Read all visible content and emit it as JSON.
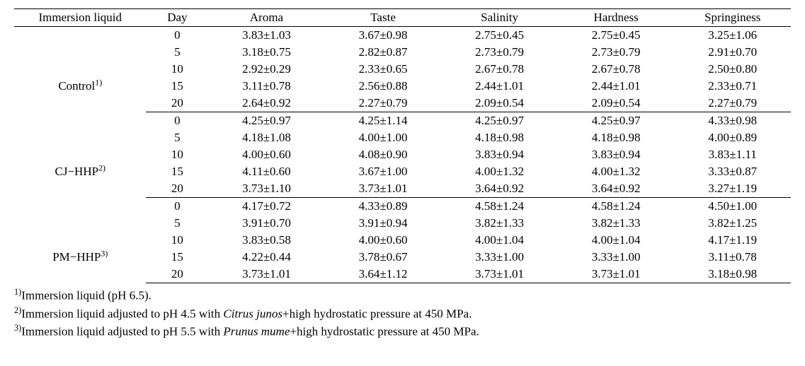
{
  "columns": [
    "Immersion liquid",
    "Day",
    "Aroma",
    "Taste",
    "Salinity",
    "Hardness",
    "Springiness"
  ],
  "groups": [
    {
      "label": "Control",
      "sup": "1)",
      "days": [
        "0",
        "5",
        "10",
        "15",
        "20"
      ],
      "rows": [
        [
          "3.83±1.03",
          "3.67±0.98",
          "2.75±0.45",
          "2.75±0.45",
          "3.25±1.06"
        ],
        [
          "3.18±0.75",
          "2.82±0.87",
          "2.73±0.79",
          "2.73±0.79",
          "2.91±0.70"
        ],
        [
          "2.92±0.29",
          "2.33±0.65",
          "2.67±0.78",
          "2.67±0.78",
          "2.50±0.80"
        ],
        [
          "3.11±0.78",
          "2.56±0.88",
          "2.44±1.01",
          "2.44±1.01",
          "2.33±0.71"
        ],
        [
          "2.64±0.92",
          "2.27±0.79",
          "2.09±0.54",
          "2.09±0.54",
          "2.27±0.79"
        ]
      ]
    },
    {
      "label": "CJ−HHP",
      "sup": "2)",
      "days": [
        "0",
        "5",
        "10",
        "15",
        "20"
      ],
      "rows": [
        [
          "4.25±0.97",
          "4.25±1.14",
          "4.25±0.97",
          "4.25±0.97",
          "4.33±0.98"
        ],
        [
          "4.18±1.08",
          "4.00±1.00",
          "4.18±0.98",
          "4.18±0.98",
          "4.00±0.89"
        ],
        [
          "4.00±0.60",
          "4.08±0.90",
          "3.83±0.94",
          "3.83±0.94",
          "3.83±1.11"
        ],
        [
          "4.11±0.60",
          "3.67±1.00",
          "4.00±1.32",
          "4.00±1.32",
          "3.33±0.87"
        ],
        [
          "3.73±1.10",
          "3.73±1.01",
          "3.64±0.92",
          "3.64±0.92",
          "3.27±1.19"
        ]
      ]
    },
    {
      "label": "PM−HHP",
      "sup": "3)",
      "days": [
        "0",
        "5",
        "10",
        "15",
        "20"
      ],
      "rows": [
        [
          "4.17±0.72",
          "4.33±0.89",
          "4.58±1.24",
          "4.58±1.24",
          "4.50±1.00"
        ],
        [
          "3.91±0.70",
          "3.91±0.94",
          "3.82±1.33",
          "3.82±1.33",
          "3.82±1.25"
        ],
        [
          "3.83±0.58",
          "4.00±0.60",
          "4.00±1.04",
          "4.00±1.04",
          "4.17±1.19"
        ],
        [
          "4.22±0.44",
          "3.78±0.67",
          "3.33±1.00",
          "3.33±1.00",
          "3.11±0.78"
        ],
        [
          "3.73±1.01",
          "3.64±1.12",
          "3.73±1.01",
          "3.73±1.01",
          "3.18±0.98"
        ]
      ]
    }
  ],
  "footnotes": [
    {
      "marker": "1)",
      "text_before": "Immersion liquid (pH 6.5).",
      "sci": "",
      "text_after": ""
    },
    {
      "marker": "2)",
      "text_before": "Immersion liquid adjusted to pH 4.5 with ",
      "sci": "Citrus junos",
      "text_after": "+high hydrostatic pressure at 450 MPa."
    },
    {
      "marker": "3)",
      "text_before": "Immersion liquid adjusted to pH 5.5 with ",
      "sci": "Prunus mume",
      "text_after": "+high hydrostatic pressure at 450 MPa."
    }
  ],
  "style": {
    "font_family": "Times New Roman",
    "base_fontsize_pt": 13,
    "text_color": "#000000",
    "background_color": "#ffffff",
    "rule_color": "#000000",
    "col_widths_pct": {
      "liquid": 17,
      "day": 8,
      "value": 15
    }
  }
}
